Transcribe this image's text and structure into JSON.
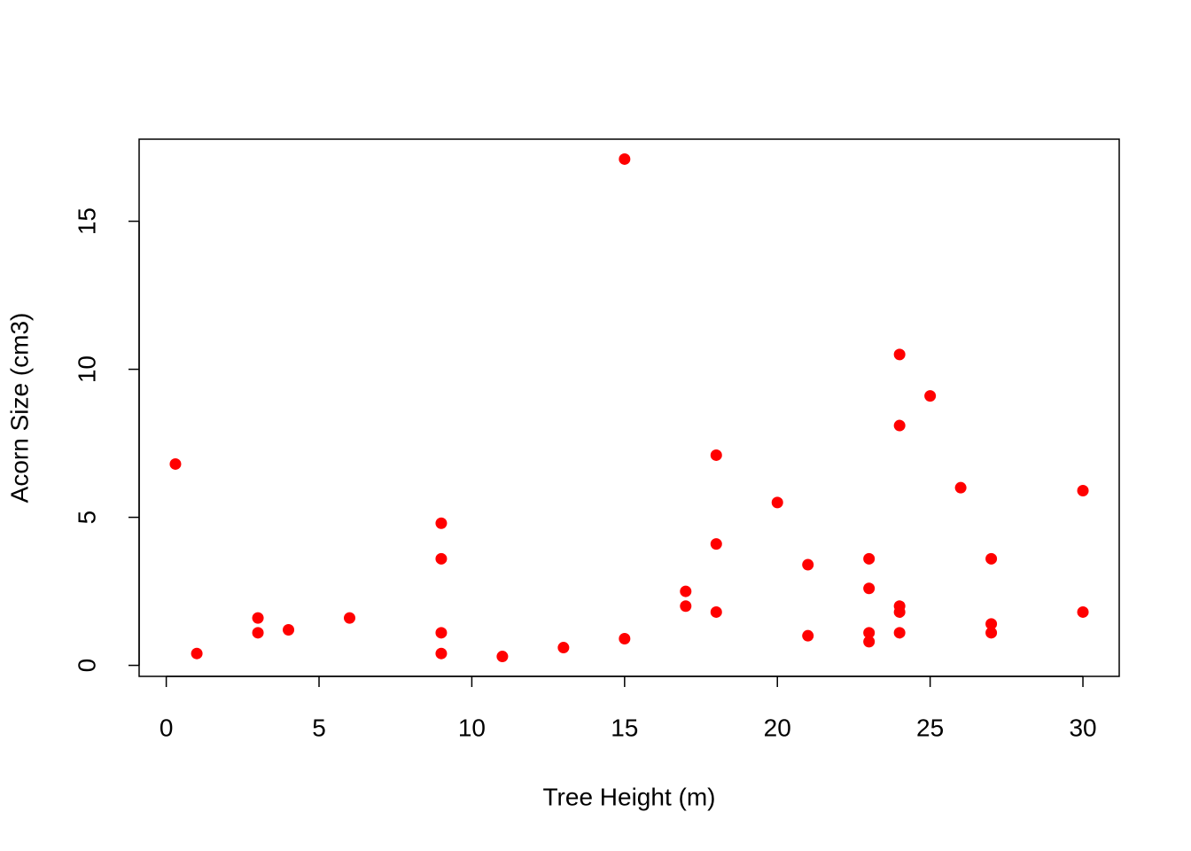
{
  "chart_data": {
    "type": "scatter",
    "xlabel": "Tree Height (m)",
    "ylabel": "Acorn Size (cm3)",
    "x": [
      0.3,
      1,
      3,
      3,
      4,
      6,
      9,
      9,
      9,
      9,
      11,
      13,
      15,
      15,
      17,
      17,
      18,
      18,
      18,
      20,
      21,
      21,
      23,
      23,
      23,
      23,
      24,
      24,
      24,
      24,
      24,
      25,
      26,
      27,
      27,
      27,
      30,
      30
    ],
    "values": [
      6.8,
      0.4,
      1.6,
      1.1,
      1.2,
      1.6,
      4.8,
      3.6,
      1.1,
      0.4,
      0.3,
      0.6,
      17.1,
      0.9,
      2.5,
      2.0,
      7.1,
      4.1,
      1.8,
      5.5,
      3.4,
      1.0,
      3.6,
      2.6,
      1.1,
      0.8,
      10.5,
      8.1,
      2.0,
      1.8,
      1.1,
      9.1,
      6.0,
      3.6,
      1.4,
      1.1,
      5.9,
      1.8
    ],
    "color": "#ff0000",
    "xlim": [
      -0.888,
      31.188
    ],
    "xticks": [
      0,
      5,
      10,
      15,
      20,
      25,
      30
    ],
    "ylim": [
      -0.372,
      17.772
    ],
    "yticks": [
      0,
      5,
      10,
      15
    ]
  }
}
